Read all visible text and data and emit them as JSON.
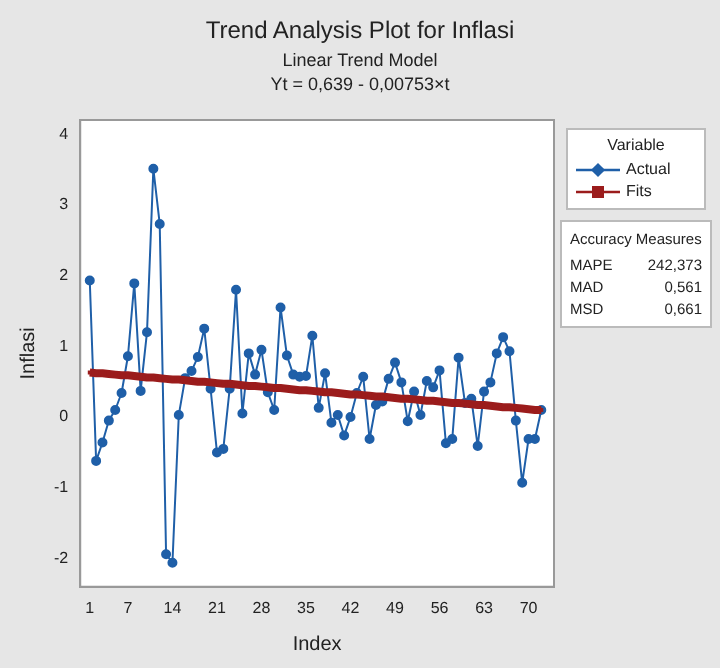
{
  "chart_data": {
    "type": "line",
    "title": "Trend Analysis Plot for Inflasi",
    "subtitle": "Linear Trend Model\nYt = 0,639 - 0,00753×t",
    "xlabel": "Index",
    "ylabel": "Inflasi",
    "legend_title": "Variable",
    "legend": "right",
    "grid": false,
    "xlim": [
      -0.5,
      74
    ],
    "xticks": [
      1,
      7,
      14,
      21,
      28,
      35,
      42,
      49,
      56,
      63,
      70
    ],
    "ylim": [
      -2.4,
      4.2
    ],
    "yticks": [
      -2,
      -1,
      0,
      1,
      2,
      3,
      4
    ],
    "annotations": [
      "Accuracy Measures",
      "MAPE 242,373",
      "MAD 0,561",
      "MSD 0,661"
    ],
    "series": [
      {
        "name": "Actual",
        "color": "#1f5fa8",
        "marker": "circle",
        "x": [
          1,
          2,
          3,
          4,
          5,
          6,
          7,
          8,
          9,
          10,
          11,
          12,
          13,
          14,
          15,
          16,
          17,
          18,
          19,
          20,
          21,
          22,
          23,
          24,
          25,
          26,
          27,
          28,
          29,
          30,
          31,
          32,
          33,
          34,
          35,
          36,
          37,
          38,
          39,
          40,
          41,
          42,
          43,
          44,
          45,
          46,
          47,
          48,
          49,
          50,
          51,
          52,
          53,
          54,
          55,
          56,
          57,
          58,
          59,
          60,
          61,
          62,
          63,
          64,
          65,
          66,
          67,
          68,
          69,
          70,
          71,
          72
        ],
        "values": [
          1.93,
          -0.62,
          -0.36,
          -0.05,
          0.1,
          0.34,
          0.86,
          1.89,
          0.37,
          1.2,
          3.51,
          2.73,
          -1.94,
          -2.06,
          0.03,
          0.55,
          0.65,
          0.85,
          1.25,
          0.4,
          -0.5,
          -0.45,
          0.4,
          1.8,
          0.05,
          0.9,
          0.6,
          0.95,
          0.35,
          0.1,
          1.55,
          0.87,
          0.6,
          0.57,
          0.58,
          1.15,
          0.13,
          0.62,
          -0.08,
          0.03,
          -0.26,
          0,
          0.34,
          0.57,
          -0.31,
          0.17,
          0.22,
          0.54,
          0.77,
          0.49,
          -0.06,
          0.36,
          0.03,
          0.51,
          0.42,
          0.66,
          -0.37,
          -0.31,
          0.84,
          0.2,
          0.26,
          -0.41,
          0.36,
          0.49,
          0.9,
          1.13,
          0.93,
          -0.05,
          -0.93,
          -0.31,
          -0.31,
          0.1
        ]
      },
      {
        "name": "Fits",
        "color": "#9b1c1c",
        "marker": "square",
        "x": [
          1,
          2,
          3,
          4,
          5,
          6,
          7,
          8,
          9,
          10,
          11,
          12,
          13,
          14,
          15,
          16,
          17,
          18,
          19,
          20,
          21,
          22,
          23,
          24,
          25,
          26,
          27,
          28,
          29,
          30,
          31,
          32,
          33,
          34,
          35,
          36,
          37,
          38,
          39,
          40,
          41,
          42,
          43,
          44,
          45,
          46,
          47,
          48,
          49,
          50,
          51,
          52,
          53,
          54,
          55,
          56,
          57,
          58,
          59,
          60,
          61,
          62,
          63,
          64,
          65,
          66,
          67,
          68,
          69,
          70,
          71,
          72
        ],
        "values": [
          0.63,
          0.62,
          0.62,
          0.61,
          0.6,
          0.59,
          0.59,
          0.58,
          0.57,
          0.56,
          0.56,
          0.55,
          0.54,
          0.53,
          0.53,
          0.52,
          0.51,
          0.5,
          0.5,
          0.49,
          0.48,
          0.47,
          0.47,
          0.46,
          0.45,
          0.44,
          0.44,
          0.43,
          0.42,
          0.41,
          0.41,
          0.4,
          0.39,
          0.38,
          0.38,
          0.37,
          0.36,
          0.35,
          0.35,
          0.34,
          0.33,
          0.32,
          0.32,
          0.31,
          0.3,
          0.29,
          0.29,
          0.28,
          0.27,
          0.26,
          0.26,
          0.25,
          0.24,
          0.23,
          0.23,
          0.22,
          0.21,
          0.2,
          0.2,
          0.19,
          0.18,
          0.17,
          0.17,
          0.16,
          0.15,
          0.14,
          0.14,
          0.13,
          0.12,
          0.11,
          0.1,
          0.1
        ]
      }
    ]
  }
}
